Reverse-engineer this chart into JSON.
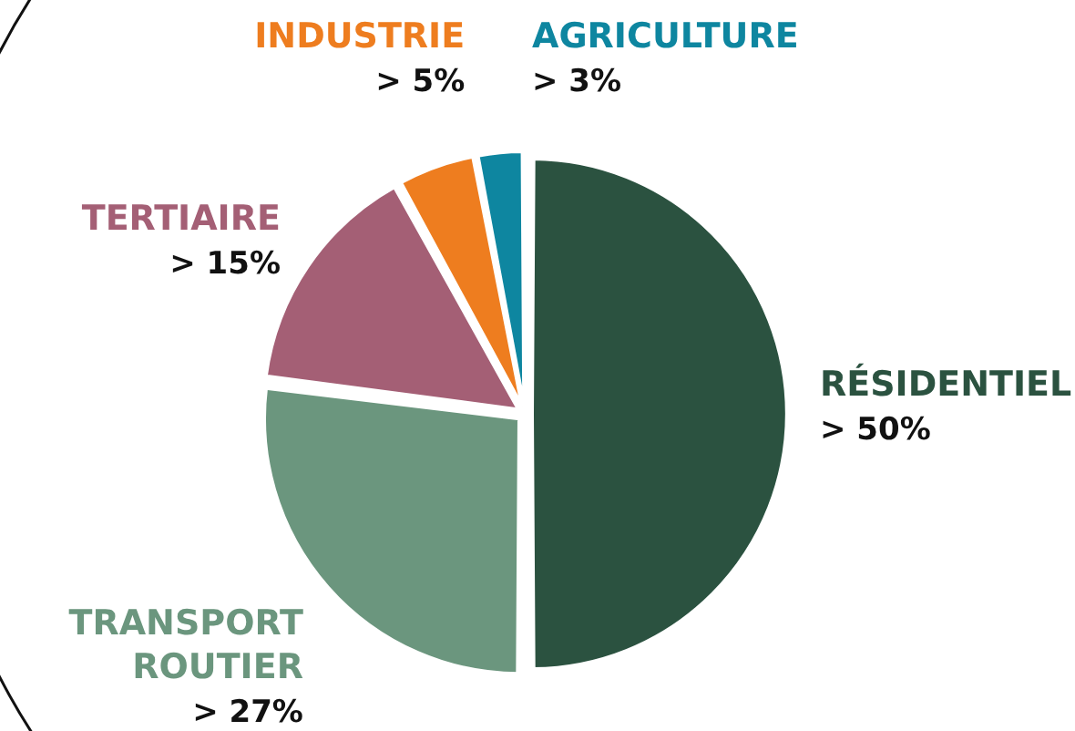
{
  "chart_data": {
    "type": "pie",
    "categories": [
      "RÉSIDENTIEL",
      "TRANSPORT ROUTIER",
      "TERTIAIRE",
      "INDUSTRIE",
      "AGRICULTURE"
    ],
    "values": [
      50,
      27,
      15,
      5,
      3
    ],
    "colors": [
      "#2b5240",
      "#6b967e",
      "#a45f75",
      "#ee7d1f",
      "#0e86a0"
    ],
    "value_labels": [
      "> 50%",
      "> 27%",
      "> 15%",
      "> 5%",
      "> 3%"
    ]
  }
}
